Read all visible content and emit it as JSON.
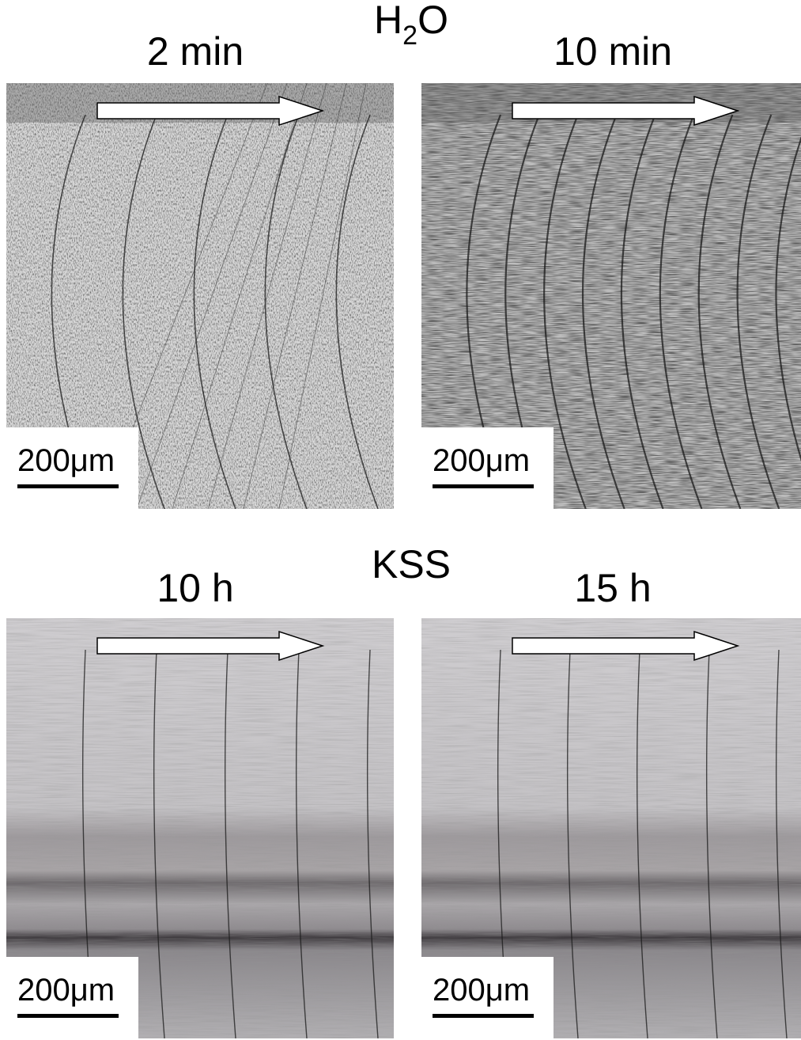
{
  "groups": [
    {
      "title": {
        "main": "H",
        "sub": "2",
        "rest": "O"
      },
      "panels": [
        {
          "time": "2 min",
          "scale_bar": "200μm"
        },
        {
          "time": "10 min",
          "scale_bar": "200μm"
        }
      ]
    },
    {
      "title": {
        "main": "KSS"
      },
      "panels": [
        {
          "time": "10 h",
          "scale_bar": "200μm"
        },
        {
          "time": "15 h",
          "scale_bar": "200μm"
        }
      ]
    }
  ]
}
